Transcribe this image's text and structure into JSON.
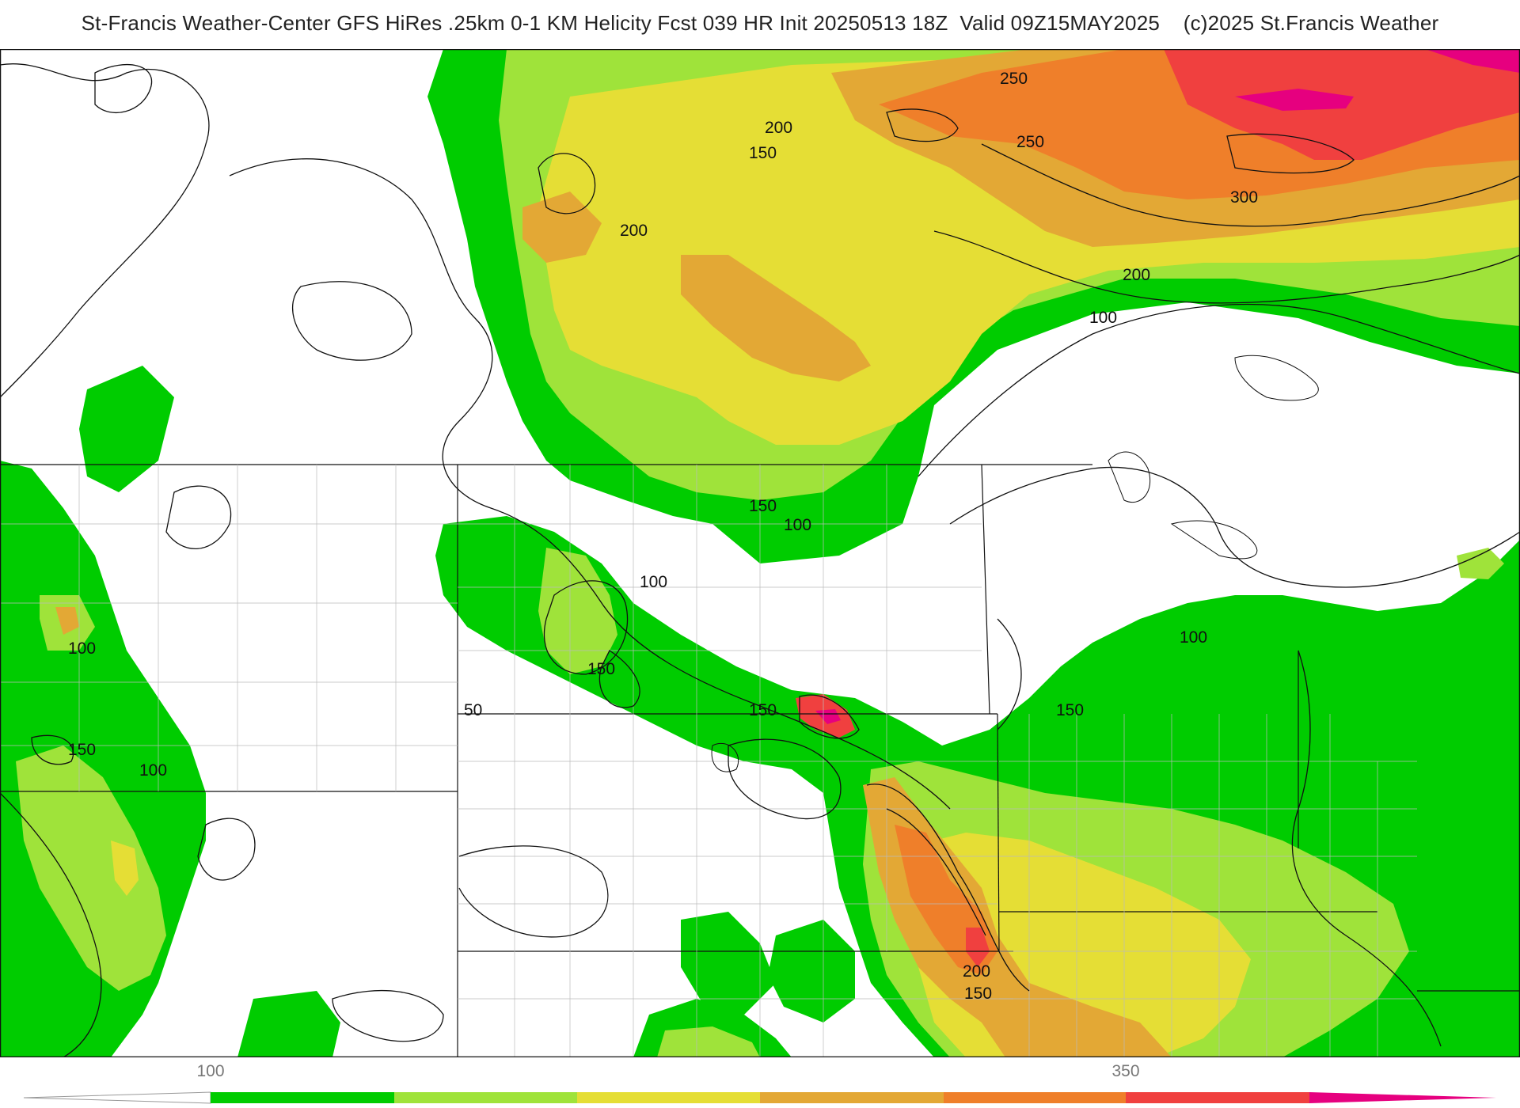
{
  "title": "St-Francis Weather-Center GFS HiRes .25km 0-1 KM Helicity Fcst 039 HR Init 20250513 18Z  Valid 09Z15MAY2025    (c)2025 St.Francis Weather",
  "contour_labels": [
    "250",
    "200",
    "150",
    "250",
    "300",
    "200",
    "100",
    "200",
    "150",
    "100",
    "100",
    "150",
    "100",
    "100",
    "150",
    "150",
    "50",
    "150",
    "100",
    "200",
    "150"
  ],
  "colorbar": {
    "tick_labels": [
      "100",
      "350"
    ],
    "colors": [
      "#ffffff",
      "#00cc00",
      "#99e033",
      "#e6dd33",
      "#e6a833",
      "#f07f2a",
      "#f0403f",
      "#e6007f"
    ]
  },
  "legend_colors": {
    "green": "#00cc00",
    "lightgreen": "#9fe33a",
    "yellow": "#e5de35",
    "orange": "#e3a835",
    "darkorange": "#ef7f2a",
    "red": "#f0403f",
    "magenta": "#e6007f"
  }
}
